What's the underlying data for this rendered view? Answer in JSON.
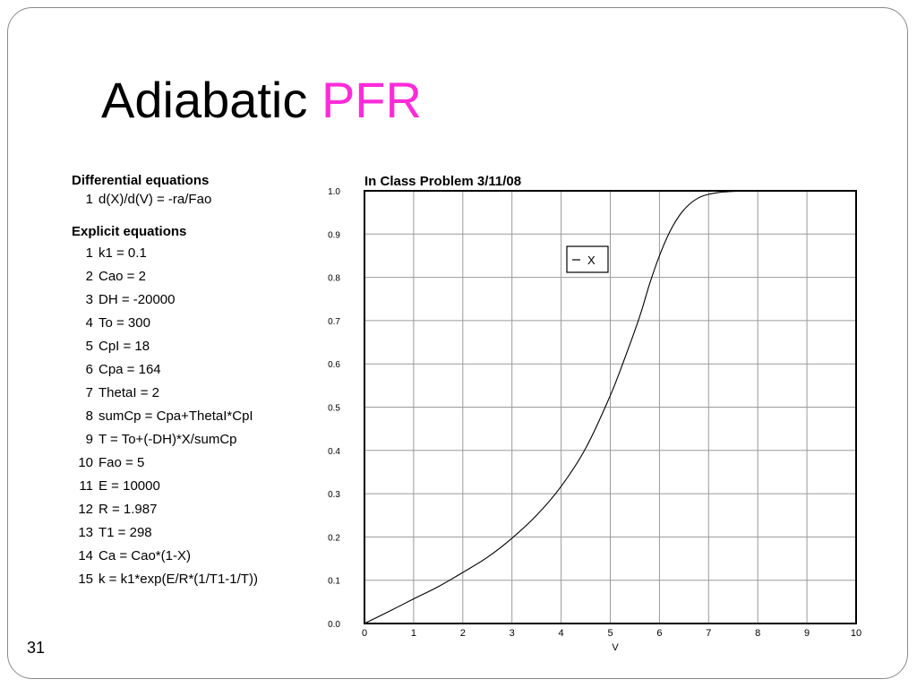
{
  "slide": {
    "title_main": "Adiabatic",
    "title_accent": "PFR",
    "page_number": "31"
  },
  "differential": {
    "heading": "Differential equations",
    "items": [
      {
        "n": "1",
        "text": "d(X)/d(V) = -ra/Fao"
      }
    ]
  },
  "explicit": {
    "heading": "Explicit equations",
    "items": [
      {
        "n": "1",
        "text": "k1 = 0.1"
      },
      {
        "n": "2",
        "text": "Cao = 2"
      },
      {
        "n": "3",
        "text": "DH = -20000"
      },
      {
        "n": "4",
        "text": "To = 300"
      },
      {
        "n": "5",
        "text": "CpI = 18"
      },
      {
        "n": "6",
        "text": "Cpa = 164"
      },
      {
        "n": "7",
        "text": "ThetaI = 2"
      },
      {
        "n": "8",
        "text": "sumCp = Cpa+ThetaI*CpI"
      },
      {
        "n": "9",
        "text": "T = To+(-DH)*X/sumCp"
      },
      {
        "n": "10",
        "text": "Fao = 5"
      },
      {
        "n": "11",
        "text": "E = 10000"
      },
      {
        "n": "12",
        "text": "R = 1.987"
      },
      {
        "n": "13",
        "text": "T1 = 298"
      },
      {
        "n": "14",
        "text": "Ca = Cao*(1-X)"
      },
      {
        "n": "15",
        "text": "k = k1*exp(E/R*(1/T1-1/T))"
      }
    ]
  },
  "chart_data": {
    "type": "line",
    "title": "In Class Problem 3/11/08",
    "xlabel": "V",
    "ylabel": "",
    "xlim": [
      0,
      10
    ],
    "ylim": [
      0,
      1
    ],
    "x_ticks": [
      "0",
      "1",
      "2",
      "3",
      "4",
      "5",
      "6",
      "7",
      "8",
      "9",
      "10"
    ],
    "y_ticks": [
      "0.0",
      "0.1",
      "0.2",
      "0.3",
      "0.4",
      "0.5",
      "0.6",
      "0.7",
      "0.8",
      "0.9",
      "1.0"
    ],
    "grid": true,
    "legend_position": "top-right",
    "series": [
      {
        "name": "X",
        "color": "#000000",
        "x": [
          0,
          0.5,
          1,
          1.5,
          2,
          2.5,
          3,
          3.5,
          4,
          4.5,
          5,
          5.3,
          5.6,
          5.8,
          6,
          6.2,
          6.4,
          6.6,
          6.8,
          7,
          7.2,
          7.4,
          7.6,
          7.8,
          8
        ],
        "y": [
          0,
          0.028,
          0.057,
          0.085,
          0.118,
          0.153,
          0.197,
          0.25,
          0.317,
          0.405,
          0.527,
          0.615,
          0.71,
          0.785,
          0.85,
          0.903,
          0.942,
          0.968,
          0.984,
          0.992,
          0.996,
          0.998,
          0.999,
          1.0,
          1.0
        ]
      }
    ]
  }
}
